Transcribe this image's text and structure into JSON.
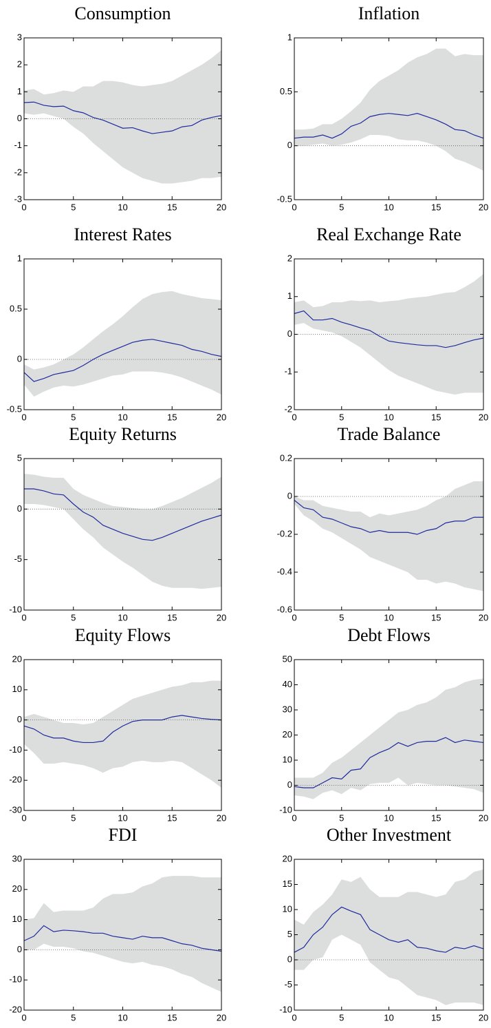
{
  "chart_data": [
    {
      "type": "line",
      "title": "Consumption",
      "x": [
        0,
        1,
        2,
        3,
        4,
        5,
        6,
        7,
        8,
        9,
        10,
        11,
        12,
        13,
        14,
        15,
        16,
        17,
        18,
        19,
        20
      ],
      "values": [
        0.6,
        0.62,
        0.5,
        0.45,
        0.47,
        0.3,
        0.22,
        0.05,
        -0.05,
        -0.2,
        -0.35,
        -0.33,
        -0.45,
        -0.55,
        -0.5,
        -0.45,
        -0.3,
        -0.25,
        -0.05,
        0.05,
        0.12
      ],
      "upper": [
        1.05,
        1.1,
        0.9,
        0.95,
        1.05,
        1.0,
        1.2,
        1.2,
        1.4,
        1.4,
        1.35,
        1.25,
        1.2,
        1.25,
        1.3,
        1.4,
        1.6,
        1.8,
        2.0,
        2.25,
        2.55
      ],
      "lower": [
        0.2,
        0.15,
        0.2,
        0.1,
        0.0,
        -0.3,
        -0.55,
        -0.9,
        -1.2,
        -1.5,
        -1.8,
        -2.0,
        -2.2,
        -2.3,
        -2.4,
        -2.4,
        -2.35,
        -2.3,
        -2.2,
        -2.2,
        -2.15
      ],
      "color": "#1f2a9c",
      "band_color": "#dcdddd",
      "xlim": [
        0,
        20
      ],
      "xticks": [
        0,
        5,
        10,
        15,
        20
      ],
      "ylim": [
        -3,
        3
      ],
      "yticks": [
        -3,
        -2,
        -1,
        0,
        1,
        2,
        3
      ]
    },
    {
      "type": "line",
      "title": "Inflation",
      "x": [
        0,
        1,
        2,
        3,
        4,
        5,
        6,
        7,
        8,
        9,
        10,
        11,
        12,
        13,
        14,
        15,
        16,
        17,
        18,
        19,
        20
      ],
      "values": [
        0.07,
        0.08,
        0.08,
        0.1,
        0.07,
        0.11,
        0.18,
        0.21,
        0.27,
        0.29,
        0.3,
        0.29,
        0.28,
        0.3,
        0.27,
        0.24,
        0.2,
        0.15,
        0.14,
        0.1,
        0.07
      ],
      "upper": [
        0.15,
        0.15,
        0.16,
        0.2,
        0.2,
        0.25,
        0.32,
        0.4,
        0.52,
        0.6,
        0.65,
        0.7,
        0.77,
        0.82,
        0.85,
        0.9,
        0.9,
        0.83,
        0.85,
        0.84,
        0.84
      ],
      "lower": [
        0.0,
        0.0,
        0.01,
        0.02,
        0.0,
        0.01,
        0.03,
        0.06,
        0.1,
        0.1,
        0.09,
        0.06,
        0.05,
        0.05,
        0.03,
        0.0,
        -0.05,
        -0.12,
        -0.15,
        -0.19,
        -0.23
      ],
      "color": "#1f2a9c",
      "band_color": "#dcdddd",
      "xlim": [
        0,
        20
      ],
      "xticks": [
        0,
        5,
        10,
        15,
        20
      ],
      "ylim": [
        -0.5,
        1
      ],
      "yticks": [
        -0.5,
        0,
        0.5,
        1
      ]
    },
    {
      "type": "line",
      "title": "Interest Rates",
      "x": [
        0,
        1,
        2,
        3,
        4,
        5,
        6,
        7,
        8,
        9,
        10,
        11,
        12,
        13,
        14,
        15,
        16,
        17,
        18,
        19,
        20
      ],
      "values": [
        -0.13,
        -0.22,
        -0.19,
        -0.15,
        -0.13,
        -0.11,
        -0.06,
        0.0,
        0.05,
        0.09,
        0.13,
        0.17,
        0.19,
        0.2,
        0.18,
        0.16,
        0.14,
        0.1,
        0.08,
        0.05,
        0.03
      ],
      "upper": [
        -0.05,
        -0.1,
        -0.08,
        -0.05,
        0.0,
        0.05,
        0.12,
        0.2,
        0.28,
        0.35,
        0.43,
        0.52,
        0.6,
        0.65,
        0.67,
        0.68,
        0.65,
        0.63,
        0.61,
        0.6,
        0.59
      ],
      "lower": [
        -0.25,
        -0.37,
        -0.32,
        -0.28,
        -0.26,
        -0.27,
        -0.25,
        -0.22,
        -0.19,
        -0.16,
        -0.15,
        -0.12,
        -0.12,
        -0.12,
        -0.13,
        -0.15,
        -0.18,
        -0.22,
        -0.26,
        -0.3,
        -0.35
      ],
      "color": "#1f2a9c",
      "band_color": "#dcdddd",
      "xlim": [
        0,
        20
      ],
      "xticks": [
        0,
        5,
        10,
        15,
        20
      ],
      "ylim": [
        -0.5,
        1
      ],
      "yticks": [
        -0.5,
        0,
        0.5,
        1
      ]
    },
    {
      "type": "line",
      "title": "Real Exchange Rate",
      "x": [
        0,
        1,
        2,
        3,
        4,
        5,
        6,
        7,
        8,
        9,
        10,
        11,
        12,
        13,
        14,
        15,
        16,
        17,
        18,
        19,
        20
      ],
      "values": [
        0.55,
        0.62,
        0.38,
        0.38,
        0.42,
        0.32,
        0.25,
        0.17,
        0.1,
        -0.05,
        -0.18,
        -0.22,
        -0.25,
        -0.28,
        -0.3,
        -0.3,
        -0.35,
        -0.3,
        -0.22,
        -0.15,
        -0.1
      ],
      "upper": [
        0.85,
        0.9,
        0.72,
        0.75,
        0.85,
        0.85,
        0.9,
        0.88,
        0.9,
        0.85,
        0.88,
        0.9,
        0.95,
        0.98,
        1.0,
        1.05,
        1.1,
        1.12,
        1.25,
        1.4,
        1.6
      ],
      "lower": [
        0.25,
        0.3,
        0.15,
        0.1,
        0.05,
        -0.05,
        -0.2,
        -0.35,
        -0.55,
        -0.75,
        -0.95,
        -1.1,
        -1.2,
        -1.3,
        -1.4,
        -1.5,
        -1.55,
        -1.6,
        -1.55,
        -1.55,
        -1.55
      ],
      "color": "#1f2a9c",
      "band_color": "#dcdddd",
      "xlim": [
        0,
        20
      ],
      "xticks": [
        0,
        5,
        10,
        15,
        20
      ],
      "ylim": [
        -2,
        2
      ],
      "yticks": [
        -2,
        -1,
        0,
        1,
        2
      ]
    },
    {
      "type": "line",
      "title": "Equity Returns",
      "x": [
        0,
        1,
        2,
        3,
        4,
        5,
        6,
        7,
        8,
        9,
        10,
        11,
        12,
        13,
        14,
        15,
        16,
        17,
        18,
        19,
        20
      ],
      "values": [
        2.0,
        2.0,
        1.8,
        1.5,
        1.4,
        0.5,
        -0.3,
        -0.8,
        -1.6,
        -2.0,
        -2.4,
        -2.7,
        -3.0,
        -3.1,
        -2.8,
        -2.4,
        -2.0,
        -1.6,
        -1.2,
        -0.9,
        -0.6
      ],
      "upper": [
        3.5,
        3.4,
        3.2,
        3.1,
        3.1,
        2.0,
        1.4,
        1.0,
        0.6,
        0.3,
        0.2,
        0.1,
        0.0,
        0.0,
        0.3,
        0.7,
        1.1,
        1.6,
        2.1,
        2.6,
        3.2
      ],
      "lower": [
        0.5,
        0.5,
        0.4,
        0.2,
        0.0,
        -1.0,
        -2.0,
        -2.8,
        -3.8,
        -4.5,
        -5.2,
        -5.8,
        -6.5,
        -7.2,
        -7.6,
        -7.8,
        -7.8,
        -7.8,
        -7.9,
        -7.8,
        -7.7
      ],
      "color": "#1f2a9c",
      "band_color": "#dcdddd",
      "xlim": [
        0,
        20
      ],
      "xticks": [
        0,
        5,
        10,
        15,
        20
      ],
      "ylim": [
        -10,
        5
      ],
      "yticks": [
        -10,
        -5,
        0,
        5
      ]
    },
    {
      "type": "line",
      "title": "Trade Balance",
      "x": [
        0,
        1,
        2,
        3,
        4,
        5,
        6,
        7,
        8,
        9,
        10,
        11,
        12,
        13,
        14,
        15,
        16,
        17,
        18,
        19,
        20
      ],
      "values": [
        -0.02,
        -0.06,
        -0.07,
        -0.11,
        -0.12,
        -0.14,
        -0.16,
        -0.17,
        -0.19,
        -0.18,
        -0.19,
        -0.19,
        -0.19,
        -0.2,
        -0.18,
        -0.17,
        -0.14,
        -0.13,
        -0.13,
        -0.11,
        -0.11
      ],
      "upper": [
        0.0,
        -0.02,
        -0.02,
        -0.05,
        -0.06,
        -0.07,
        -0.08,
        -0.08,
        -0.11,
        -0.09,
        -0.1,
        -0.09,
        -0.08,
        -0.07,
        -0.05,
        -0.02,
        0.0,
        0.04,
        0.06,
        0.08,
        0.08
      ],
      "lower": [
        -0.04,
        -0.1,
        -0.13,
        -0.17,
        -0.19,
        -0.22,
        -0.25,
        -0.28,
        -0.32,
        -0.34,
        -0.36,
        -0.38,
        -0.4,
        -0.44,
        -0.44,
        -0.46,
        -0.45,
        -0.46,
        -0.48,
        -0.49,
        -0.5
      ],
      "color": "#1f2a9c",
      "band_color": "#dcdddd",
      "xlim": [
        0,
        20
      ],
      "xticks": [
        0,
        5,
        10,
        15,
        20
      ],
      "ylim": [
        -0.6,
        0.2
      ],
      "yticks": [
        -0.6,
        -0.4,
        -0.2,
        0,
        0.2
      ]
    },
    {
      "type": "line",
      "title": "Equity Flows",
      "x": [
        0,
        1,
        2,
        3,
        4,
        5,
        6,
        7,
        8,
        9,
        10,
        11,
        12,
        13,
        14,
        15,
        16,
        17,
        18,
        19,
        20
      ],
      "values": [
        -2,
        -3,
        -5,
        -6,
        -6,
        -7,
        -7.5,
        -7.5,
        -7,
        -4,
        -2,
        -0.5,
        0,
        0,
        0,
        1,
        1.5,
        1,
        0.5,
        0.2,
        0
      ],
      "upper": [
        1,
        2,
        1,
        0,
        -1,
        -1,
        -1.5,
        -1,
        1,
        3,
        5,
        7,
        8,
        9,
        10,
        11,
        11.5,
        12.5,
        12.5,
        13,
        13
      ],
      "lower": [
        -8,
        -11,
        -14.5,
        -14.5,
        -14,
        -14.5,
        -15,
        -16,
        -17.5,
        -16,
        -15.5,
        -14,
        -13.5,
        -14,
        -14,
        -13.5,
        -14,
        -16,
        -18,
        -20,
        -22.5
      ],
      "color": "#1f2a9c",
      "band_color": "#dcdddd",
      "xlim": [
        0,
        20
      ],
      "xticks": [
        0,
        5,
        10,
        15,
        20
      ],
      "ylim": [
        -30,
        20
      ],
      "yticks": [
        -30,
        -20,
        -10,
        0,
        10,
        20
      ]
    },
    {
      "type": "line",
      "title": "Debt Flows",
      "x": [
        0,
        1,
        2,
        3,
        4,
        5,
        6,
        7,
        8,
        9,
        10,
        11,
        12,
        13,
        14,
        15,
        16,
        17,
        18,
        19,
        20
      ],
      "values": [
        -0.5,
        -1,
        -1,
        1,
        3,
        2.5,
        6,
        6.5,
        11,
        13,
        14.5,
        17,
        15.5,
        17,
        17.5,
        17.5,
        19,
        17,
        18,
        17.5,
        17
      ],
      "upper": [
        3,
        3,
        3,
        5,
        9,
        11,
        14,
        17,
        20,
        23,
        26,
        29,
        30,
        32,
        33,
        35,
        38,
        39,
        41,
        42,
        42.5
      ],
      "lower": [
        -4,
        -4.5,
        -5.5,
        -3,
        -2,
        -3.5,
        -1,
        -2,
        0.5,
        1,
        1,
        3,
        0,
        1,
        0.5,
        0,
        0,
        -0.5,
        -1,
        -1.5,
        -3
      ],
      "color": "#1f2a9c",
      "band_color": "#dcdddd",
      "xlim": [
        0,
        20
      ],
      "xticks": [
        0,
        5,
        10,
        15,
        20
      ],
      "ylim": [
        -10,
        50
      ],
      "yticks": [
        -10,
        0,
        10,
        20,
        30,
        40,
        50
      ]
    },
    {
      "type": "line",
      "title": "FDI",
      "x": [
        0,
        1,
        2,
        3,
        4,
        5,
        6,
        7,
        8,
        9,
        10,
        11,
        12,
        13,
        14,
        15,
        16,
        17,
        18,
        19,
        20
      ],
      "values": [
        3,
        4.5,
        8,
        6,
        6.5,
        6.3,
        6,
        5.5,
        5.5,
        4.5,
        4,
        3.5,
        4.5,
        4,
        4,
        3,
        2,
        1.5,
        0.5,
        0,
        -0.5
      ],
      "upper": [
        10,
        10.5,
        15.5,
        12.5,
        13,
        13,
        13,
        14,
        17,
        18.5,
        18.5,
        19,
        21,
        22,
        24,
        24.5,
        24.5,
        24.5,
        24,
        24,
        24
      ],
      "lower": [
        0,
        0,
        2,
        1,
        1,
        0.5,
        -0.5,
        -1,
        -2,
        -3,
        -4,
        -4.5,
        -4,
        -5,
        -5.5,
        -6.5,
        -8,
        -9,
        -11,
        -12.5,
        -14
      ],
      "color": "#1f2a9c",
      "band_color": "#dcdddd",
      "xlim": [
        0,
        20
      ],
      "xticks": [
        0,
        5,
        10,
        15,
        20
      ],
      "ylim": [
        -20,
        30
      ],
      "yticks": [
        -20,
        -10,
        0,
        10,
        20,
        30
      ]
    },
    {
      "type": "line",
      "title": "Other Investment",
      "x": [
        0,
        1,
        2,
        3,
        4,
        5,
        6,
        7,
        8,
        9,
        10,
        11,
        12,
        13,
        14,
        15,
        16,
        17,
        18,
        19,
        20
      ],
      "values": [
        1.5,
        2.5,
        5,
        6.5,
        9,
        10.5,
        9.7,
        9,
        6,
        5,
        4,
        3.5,
        4,
        2.5,
        2.3,
        1.8,
        1.5,
        2.5,
        2.2,
        2.8,
        2.2
      ],
      "upper": [
        8,
        7,
        9.5,
        11,
        13,
        16,
        15.5,
        16.5,
        14,
        12.5,
        12.5,
        12.5,
        13.5,
        13.5,
        13,
        12.5,
        13,
        15.5,
        16,
        17.5,
        18
      ],
      "lower": [
        -2,
        -2,
        0,
        0.5,
        4,
        5,
        4,
        3,
        -0.5,
        -2,
        -3.5,
        -4,
        -5.5,
        -7,
        -7.5,
        -8,
        -9,
        -8.5,
        -8.5,
        -8.5,
        -9
      ],
      "color": "#1f2a9c",
      "band_color": "#dcdddd",
      "xlim": [
        0,
        20
      ],
      "xticks": [
        0,
        5,
        10,
        15,
        20
      ],
      "ylim": [
        -10,
        20
      ],
      "yticks": [
        -10,
        -5,
        0,
        5,
        10,
        15,
        20
      ]
    }
  ]
}
